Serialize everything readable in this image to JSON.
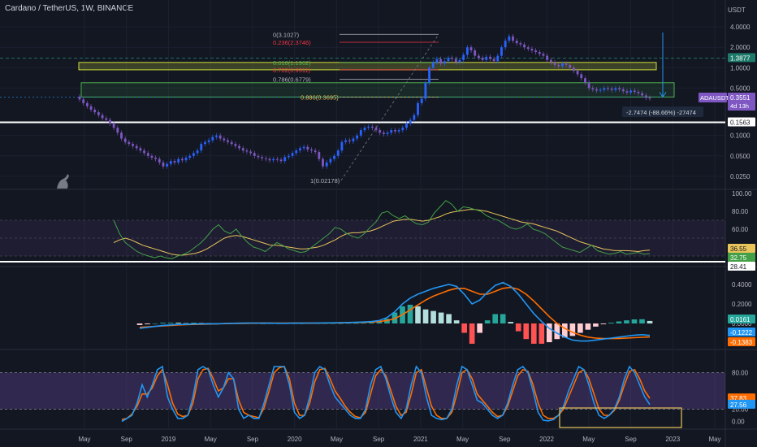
{
  "header": {
    "title": "Cardano / TetherUS, 1W, BINANCE"
  },
  "colors": {
    "background": "#131722",
    "up": "#2962ff",
    "down": "#7e57c2",
    "rsi": "#43a047",
    "rsi_ma": "#e8c45a",
    "macd": "#2196f3",
    "signal": "#ff6d00",
    "stoch_k": "#2196f3",
    "stoch_d": "#ff6d00"
  },
  "chart_data": [
    {
      "type": "candlestick",
      "title": "Cardano / TetherUS, 1W, BINANCE",
      "ylabel": "USDT",
      "scale": "log",
      "ylim": [
        0.02,
        5
      ],
      "y_ticks": [
        "4.0000",
        "2.0000",
        "1.0000",
        "0.5000",
        "0.1000",
        "0.0500",
        "0.0250"
      ],
      "x_ticks": [
        "May",
        "Sep",
        "2019",
        "May",
        "Sep",
        "2020",
        "May",
        "Sep",
        "2021",
        "May",
        "Sep",
        "2022",
        "May",
        "Sep",
        "2023",
        "May"
      ],
      "close_series": [
        0.34,
        0.3,
        0.27,
        0.24,
        0.22,
        0.2,
        0.18,
        0.17,
        0.15,
        0.13,
        0.11,
        0.09,
        0.08,
        0.075,
        0.07,
        0.065,
        0.06,
        0.055,
        0.05,
        0.047,
        0.045,
        0.04,
        0.035,
        0.038,
        0.042,
        0.04,
        0.045,
        0.043,
        0.047,
        0.05,
        0.055,
        0.06,
        0.075,
        0.08,
        0.085,
        0.095,
        0.1,
        0.09,
        0.085,
        0.08,
        0.075,
        0.07,
        0.065,
        0.06,
        0.058,
        0.055,
        0.05,
        0.048,
        0.046,
        0.045,
        0.043,
        0.045,
        0.044,
        0.042,
        0.048,
        0.05,
        0.055,
        0.06,
        0.065,
        0.068,
        0.062,
        0.06,
        0.057,
        0.045,
        0.035,
        0.04,
        0.045,
        0.05,
        0.06,
        0.08,
        0.085,
        0.082,
        0.09,
        0.1,
        0.12,
        0.13,
        0.135,
        0.13,
        0.12,
        0.11,
        0.105,
        0.11,
        0.12,
        0.115,
        0.12,
        0.13,
        0.15,
        0.17,
        0.2,
        0.3,
        0.35,
        0.6,
        1.0,
        1.2,
        1.35,
        1.15,
        1.25,
        1.4,
        1.35,
        1.2,
        1.3,
        1.55,
        2.0,
        1.8,
        1.5,
        1.4,
        1.3,
        1.45,
        1.35,
        1.25,
        1.5,
        2.0,
        2.5,
        2.9,
        2.5,
        2.3,
        2.2,
        2.0,
        1.9,
        1.8,
        1.7,
        1.6,
        1.5,
        1.3,
        1.2,
        1.1,
        1.05,
        1.15,
        1.1,
        1.0,
        0.9,
        0.8,
        0.7,
        0.6,
        0.5,
        0.48,
        0.46,
        0.47,
        0.5,
        0.49,
        0.47,
        0.5,
        0.48,
        0.45,
        0.43,
        0.46,
        0.44,
        0.42,
        0.39,
        0.36,
        0.3551
      ],
      "price_labels": [
        {
          "value": "1.3877",
          "color": "#1e7a6a"
        },
        {
          "value": "0.3551",
          "color": "#7e57c2",
          "symbol": "ADAUSDT",
          "countdown": "4d 13h"
        },
        {
          "value": "0.1563",
          "color": "#ffffff"
        }
      ],
      "fib_levels": [
        {
          "label": "0(3.1027)",
          "color": "#b2b5be"
        },
        {
          "label": "0.236(2.3746)",
          "color": "#f23645"
        },
        {
          "label": "0.618(1.1962)",
          "color": "#4caf50"
        },
        {
          "label": "0.702(0.9311)",
          "color": "#f23645"
        },
        {
          "label": "0.786(0.6779)",
          "color": "#b2b5be"
        },
        {
          "label": "0.886(0.3695)",
          "color": "#e8c45a"
        },
        {
          "label": "1(0.02178)",
          "color": "#b2b5be"
        }
      ],
      "measure_label": "-2.7474 (-88.66%) -27474",
      "horizontal_lines": [
        1.3877,
        0.1563
      ]
    },
    {
      "type": "line",
      "title": "RSI",
      "ylim": [
        20,
        100
      ],
      "y_ticks": [
        "100.00",
        "80.00",
        "60.00",
        "40.00"
      ],
      "series": [
        {
          "values": [
            70,
            55,
            45,
            40,
            35,
            32,
            30,
            28,
            30,
            28,
            27,
            30,
            32,
            35,
            40,
            45,
            52,
            60,
            65,
            58,
            55,
            60,
            52,
            45,
            40,
            38,
            35,
            40,
            45,
            42,
            38,
            36,
            34,
            35,
            40,
            45,
            50,
            55,
            62,
            60,
            55,
            52,
            50,
            55,
            62,
            68,
            78,
            80,
            75,
            72,
            75,
            70,
            66,
            65,
            68,
            78,
            85,
            92,
            88,
            80,
            85,
            84,
            82,
            80,
            75,
            72,
            70,
            66,
            62,
            60,
            62,
            66,
            60,
            58,
            55,
            50,
            45,
            40,
            38,
            36,
            34,
            38,
            42,
            36,
            34,
            32,
            33,
            35,
            32,
            33,
            34,
            32,
            32.75
          ]
        },
        {
          "values": [
            45,
            48,
            50,
            48,
            45,
            42,
            40,
            38,
            36,
            34,
            32,
            31,
            31,
            32,
            33,
            35,
            38,
            42,
            46,
            50,
            52,
            53,
            52,
            50,
            48,
            46,
            44,
            42,
            42,
            41,
            40,
            39,
            38,
            38,
            39,
            40,
            42,
            45,
            48,
            52,
            55,
            56,
            56,
            57,
            58,
            60,
            63,
            66,
            69,
            70,
            71,
            71,
            70,
            69,
            70,
            72,
            74,
            77,
            79,
            80,
            81,
            82,
            82,
            81,
            80,
            78,
            76,
            74,
            72,
            70,
            68,
            67,
            66,
            64,
            62,
            60,
            58,
            55,
            52,
            49,
            46,
            44,
            42,
            40,
            38,
            37,
            36,
            36,
            36,
            35.5,
            35,
            36,
            36.55
          ]
        }
      ],
      "value_labels": [
        {
          "value": "36.55",
          "color": "#e8c45a"
        },
        {
          "value": "32.75",
          "color": "#43a047"
        },
        {
          "value": "28.41",
          "color": "#ffffff"
        }
      ]
    },
    {
      "type": "line",
      "title": "MACD",
      "ylim": [
        -0.25,
        0.5
      ],
      "y_ticks": [
        "0.4000",
        "0.2000",
        "0.0000"
      ],
      "series": [
        {
          "values": [
            -0.05,
            -0.04,
            -0.03,
            -0.02,
            -0.015,
            -0.01,
            -0.01,
            -0.005,
            -0.005,
            -0.003,
            -0.003,
            0,
            0.002,
            0.003,
            0.005,
            0.004,
            0.003,
            0.003,
            0.002,
            0.002,
            0.003,
            0.003,
            0.004,
            0.005,
            0.006,
            0.007,
            0.008,
            0.01,
            0.012,
            0.015,
            0.02,
            0.03,
            0.06,
            0.12,
            0.2,
            0.26,
            0.3,
            0.33,
            0.36,
            0.38,
            0.4,
            0.38,
            0.3,
            0.2,
            0.24,
            0.32,
            0.39,
            0.42,
            0.38,
            0.3,
            0.2,
            0.1,
            0.02,
            -0.05,
            -0.1,
            -0.14,
            -0.17,
            -0.18,
            -0.18,
            -0.17,
            -0.16,
            -0.15,
            -0.14,
            -0.13,
            -0.12,
            -0.115,
            -0.1222
          ]
        },
        {
          "values": [
            -0.04,
            -0.035,
            -0.03,
            -0.025,
            -0.02,
            -0.015,
            -0.012,
            -0.01,
            -0.008,
            -0.006,
            -0.004,
            -0.002,
            0,
            0.001,
            0.002,
            0.003,
            0.003,
            0.003,
            0.003,
            0.003,
            0.003,
            0.003,
            0.003,
            0.004,
            0.005,
            0.006,
            0.007,
            0.008,
            0.01,
            0.012,
            0.015,
            0.02,
            0.03,
            0.05,
            0.09,
            0.14,
            0.19,
            0.24,
            0.28,
            0.31,
            0.34,
            0.36,
            0.36,
            0.33,
            0.3,
            0.3,
            0.33,
            0.36,
            0.37,
            0.35,
            0.3,
            0.23,
            0.15,
            0.07,
            0.0,
            -0.05,
            -0.09,
            -0.12,
            -0.14,
            -0.15,
            -0.155,
            -0.155,
            -0.153,
            -0.15,
            -0.146,
            -0.142,
            -0.1383
          ]
        }
      ],
      "value_labels": [
        {
          "value": "0.0161",
          "color": "#26a69a"
        },
        {
          "value": "-0.1222",
          "color": "#2196f3"
        },
        {
          "value": "-0.1383",
          "color": "#ff6d00"
        }
      ]
    },
    {
      "type": "line",
      "title": "Stoch RSI",
      "ylim": [
        -10,
        110
      ],
      "y_ticks": [
        "80.00",
        "20.00",
        "0.00"
      ],
      "series": [
        {
          "values": [
            0,
            5,
            10,
            30,
            60,
            40,
            60,
            85,
            90,
            40,
            20,
            5,
            5,
            10,
            40,
            85,
            90,
            85,
            60,
            40,
            55,
            80,
            70,
            20,
            5,
            10,
            5,
            5,
            30,
            60,
            90,
            90,
            90,
            60,
            15,
            5,
            10,
            40,
            80,
            90,
            85,
            60,
            40,
            30,
            20,
            10,
            5,
            5,
            20,
            60,
            85,
            90,
            70,
            40,
            15,
            5,
            20,
            60,
            90,
            80,
            40,
            10,
            5,
            3,
            5,
            20,
            60,
            90,
            85,
            60,
            35,
            30,
            20,
            10,
            5,
            10,
            30,
            60,
            85,
            90,
            80,
            50,
            15,
            2,
            1,
            3,
            10,
            25,
            50,
            70,
            90,
            85,
            60,
            30,
            10,
            5,
            10,
            20,
            40,
            70,
            90,
            80,
            60,
            40,
            27.56
          ]
        },
        {
          "values": [
            3,
            5,
            12,
            25,
            45,
            45,
            55,
            75,
            85,
            60,
            30,
            12,
            8,
            10,
            30,
            70,
            85,
            87,
            70,
            50,
            55,
            70,
            70,
            35,
            15,
            10,
            8,
            6,
            22,
            50,
            80,
            88,
            90,
            70,
            30,
            10,
            10,
            30,
            65,
            85,
            87,
            70,
            50,
            38,
            25,
            15,
            8,
            6,
            15,
            45,
            75,
            85,
            75,
            50,
            25,
            10,
            15,
            45,
            80,
            85,
            55,
            25,
            10,
            5,
            5,
            15,
            45,
            80,
            85,
            70,
            45,
            35,
            25,
            15,
            8,
            10,
            25,
            50,
            75,
            85,
            82,
            60,
            30,
            10,
            5,
            5,
            10,
            20,
            40,
            60,
            80,
            85,
            70,
            45,
            20,
            10,
            10,
            18,
            35,
            60,
            82,
            85,
            70,
            50,
            37.83
          ]
        }
      ],
      "value_labels": [
        {
          "value": "37.83",
          "color": "#ff6d00"
        },
        {
          "value": "27.56",
          "color": "#2196f3"
        }
      ]
    }
  ]
}
